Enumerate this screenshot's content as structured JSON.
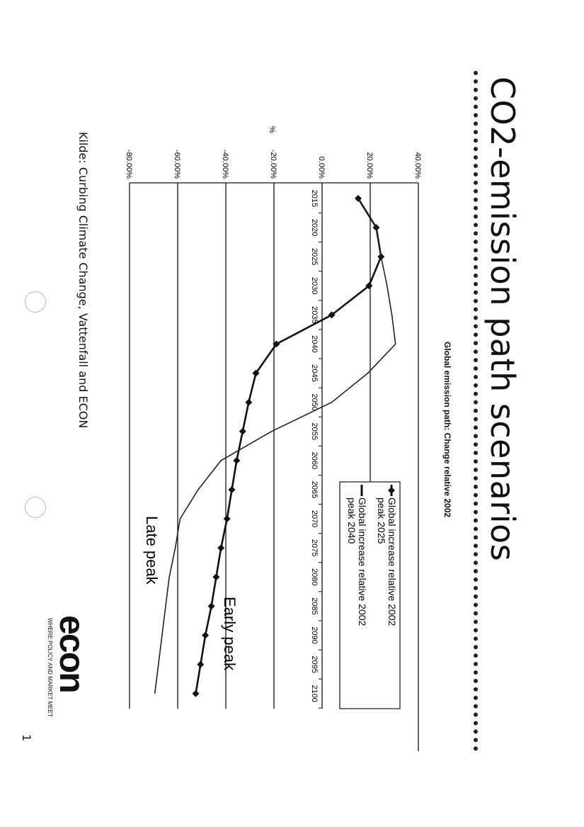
{
  "page": {
    "title": "CO2-emission path scenarios",
    "source": "Kilde: Curbing Climate Change, Vattenfall and ECON",
    "logo_text": "econ",
    "tagline": "WHERE POLICY AND MARKET MEET",
    "page_number": "1"
  },
  "chart_data": {
    "type": "line",
    "title": "Global emission path: Change relative 2002",
    "ylabel": "%",
    "xlabel": "",
    "ylim": [
      -80,
      40
    ],
    "y_ticks": [
      "40.00%",
      "20.00%",
      "0.00%",
      "-20.00%",
      "-40.00%",
      "-60.00%",
      "-80.00%"
    ],
    "y_tick_values": [
      40,
      20,
      0,
      -20,
      -40,
      -60,
      -80
    ],
    "x": [
      "2015",
      "2020",
      "2025",
      "2030",
      "2035",
      "2040",
      "2045",
      "2050",
      "2055",
      "2060",
      "2065",
      "2070",
      "2075",
      "2080",
      "2085",
      "2090",
      "2095",
      "2100"
    ],
    "grid": "horizontal",
    "legend_position": "right",
    "series": [
      {
        "name": "Global increase relative 2002 peak 2025",
        "marker": "diamond",
        "values": [
          15,
          22.5,
          24.5,
          19.5,
          4,
          -19,
          -27.5,
          -30.5,
          -33,
          -35.5,
          -37.5,
          -39.5,
          -42,
          -44,
          -46,
          -48.5,
          -50.5,
          -52.5
        ]
      },
      {
        "name": "Global increase relative 2002 peak 2040",
        "marker": "none",
        "values": [
          15,
          22.5,
          24.5,
          27,
          29,
          30.5,
          19,
          4,
          -21,
          -42,
          -51.5,
          -59,
          -61,
          -63.5,
          -65,
          -66.5,
          -68,
          -69.5
        ]
      }
    ],
    "annotations": [
      "Late peak",
      "Early peak"
    ],
    "colors": {
      "series_1": "#111111",
      "series_2": "#222222"
    }
  }
}
